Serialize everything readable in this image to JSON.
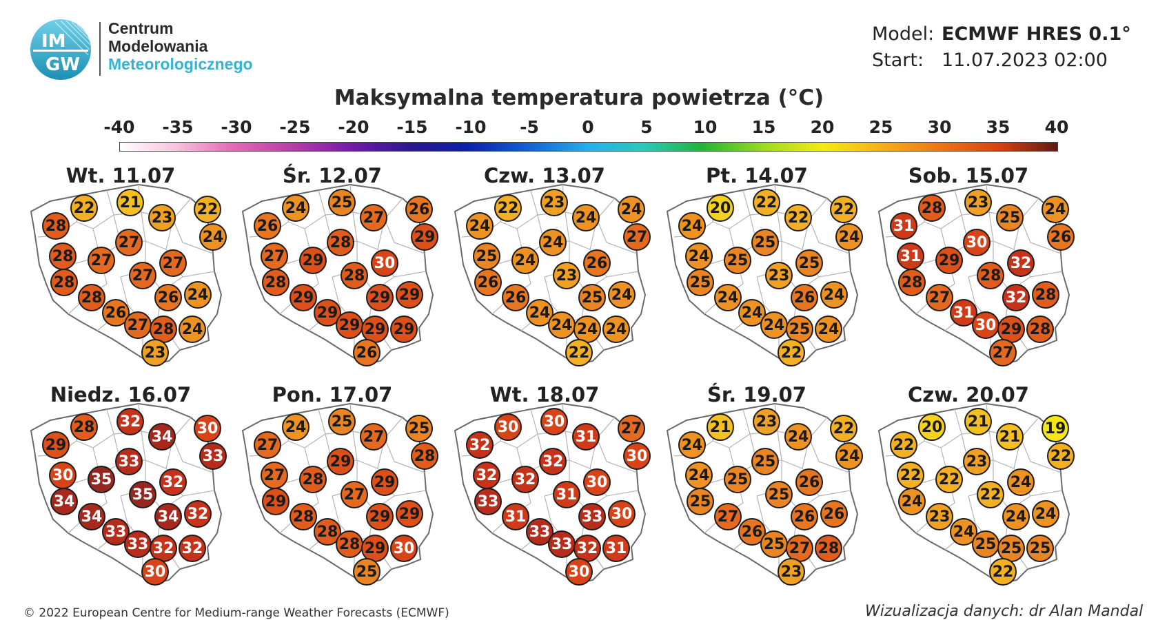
{
  "header": {
    "logo_text_top": "IM",
    "logo_text_bottom": "GW",
    "org_line1": "Centrum",
    "org_line2": "Modelowania",
    "org_line3": "Meteorologicznego",
    "model_label": "Model:",
    "model_value": "ECMWF HRES 0.1°",
    "start_label": "Start:",
    "start_value": "11.07.2023 02:00",
    "title": "Maksymalna temperatura powietrza (°C)"
  },
  "colorbar": {
    "ticks": [
      "-40",
      "-35",
      "-30",
      "-25",
      "-20",
      "-15",
      "-10",
      "-5",
      "0",
      "5",
      "10",
      "15",
      "20",
      "25",
      "30",
      "35",
      "40"
    ],
    "min": -40,
    "max": 40
  },
  "panels": [
    {
      "title": "Wt. 11.07",
      "values": [
        22,
        21,
        22,
        28,
        23,
        24,
        28,
        27,
        27,
        27,
        28,
        27,
        24,
        28,
        26,
        26,
        27,
        28,
        24,
        23
      ]
    },
    {
      "title": "Śr. 12.07",
      "values": [
        24,
        25,
        26,
        26,
        27,
        29,
        27,
        28,
        29,
        30,
        28,
        28,
        29,
        29,
        29,
        29,
        29,
        29,
        29,
        26
      ]
    },
    {
      "title": "Czw. 13.07",
      "values": [
        22,
        23,
        24,
        24,
        24,
        27,
        25,
        24,
        24,
        26,
        26,
        23,
        24,
        26,
        25,
        24,
        24,
        24,
        24,
        22
      ]
    },
    {
      "title": "Pt. 14.07",
      "values": [
        20,
        22,
        22,
        24,
        22,
        24,
        24,
        25,
        25,
        25,
        25,
        23,
        24,
        24,
        26,
        24,
        24,
        25,
        24,
        22
      ]
    },
    {
      "title": "Sob. 15.07",
      "values": [
        28,
        23,
        24,
        31,
        25,
        26,
        31,
        30,
        29,
        32,
        28,
        28,
        28,
        27,
        32,
        31,
        30,
        29,
        28,
        27
      ]
    },
    {
      "title": "Niedz. 16.07",
      "values": [
        28,
        32,
        30,
        29,
        34,
        33,
        30,
        33,
        35,
        32,
        34,
        35,
        32,
        34,
        34,
        33,
        33,
        32,
        32,
        30
      ]
    },
    {
      "title": "Pon. 17.07",
      "values": [
        24,
        25,
        25,
        27,
        27,
        28,
        27,
        29,
        28,
        29,
        29,
        27,
        29,
        28,
        29,
        28,
        28,
        29,
        30,
        25
      ]
    },
    {
      "title": "Wt. 18.07",
      "values": [
        30,
        30,
        27,
        32,
        31,
        30,
        32,
        32,
        32,
        30,
        33,
        31,
        30,
        31,
        33,
        33,
        33,
        32,
        31,
        30
      ]
    },
    {
      "title": "Śr. 19.07",
      "values": [
        21,
        23,
        22,
        24,
        24,
        24,
        24,
        25,
        25,
        26,
        25,
        25,
        26,
        27,
        26,
        26,
        25,
        27,
        28,
        23
      ]
    },
    {
      "title": "Czw. 20.07",
      "values": [
        20,
        21,
        19,
        22,
        21,
        22,
        22,
        23,
        22,
        24,
        24,
        22,
        24,
        23,
        24,
        24,
        25,
        25,
        25,
        22
      ]
    }
  ],
  "footer": {
    "copyright": "© 2022 European Centre for Medium-range Weather Forecasts (ECMWF)",
    "credit": "Wizualizacja danych: dr Alan Mandal"
  }
}
